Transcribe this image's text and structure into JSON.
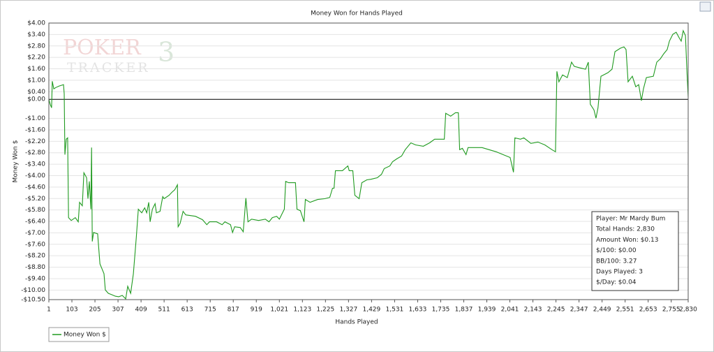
{
  "chart_data": {
    "type": "line",
    "title": "Money Won for Hands Played",
    "xlabel": "Hands Played",
    "ylabel": "Money Won $",
    "watermark": [
      "POKER",
      "TRACKER",
      "3"
    ],
    "annotations": [
      "Player: Mr Mardy Bum",
      "Total Hands: 2,830",
      "Amount Won: $0.13",
      "$/100: $0.00",
      "BB/100: 3.27",
      "Days Played: 3",
      "$/Day: $0.04"
    ],
    "grid": true,
    "legend": "bottom-left",
    "xlim": [
      1,
      2830
    ],
    "ylim": [
      -10.5,
      4
    ],
    "xticks": [
      1,
      103,
      205,
      307,
      409,
      511,
      613,
      715,
      817,
      919,
      {
        "value": 1021,
        "label": "1,021"
      },
      {
        "value": 1123,
        "label": "1,123"
      },
      {
        "value": 1225,
        "label": "1,225"
      },
      {
        "value": 1327,
        "label": "1,327"
      },
      {
        "value": 1429,
        "label": "1,429"
      },
      {
        "value": 1531,
        "label": "1,531"
      },
      {
        "value": 1633,
        "label": "1,633"
      },
      {
        "value": 1735,
        "label": "1,735"
      },
      {
        "value": 1837,
        "label": "1,837"
      },
      {
        "value": 1939,
        "label": "1,939"
      },
      {
        "value": 2041,
        "label": "2,041"
      },
      {
        "value": 2143,
        "label": "2,143"
      },
      {
        "value": 2245,
        "label": "2,245"
      },
      {
        "value": 2347,
        "label": "2,347"
      },
      {
        "value": 2449,
        "label": "2,449"
      },
      {
        "value": 2551,
        "label": "2,551"
      },
      {
        "value": 2653,
        "label": "2,653"
      },
      {
        "value": 2755,
        "label": "2,755"
      },
      {
        "value": 2830,
        "label": "2,830"
      }
    ],
    "yticks": [
      {
        "value": 4,
        "label": "$4.00"
      },
      {
        "value": 3.4,
        "label": "$3.40"
      },
      {
        "value": 2.8,
        "label": "$2.80"
      },
      {
        "value": 2.2,
        "label": "$2.20"
      },
      {
        "value": 1.6,
        "label": "$1.60"
      },
      {
        "value": 1,
        "label": "$1.00"
      },
      {
        "value": 0.4,
        "label": "$0.40"
      },
      {
        "value": 0,
        "label": "$0.00"
      },
      {
        "value": -1,
        "label": "-$1.00"
      },
      {
        "value": -1.6,
        "label": "-$1.60"
      },
      {
        "value": -2.2,
        "label": "-$2.20"
      },
      {
        "value": -2.8,
        "label": "-$2.80"
      },
      {
        "value": -3.4,
        "label": "-$3.40"
      },
      {
        "value": -4,
        "label": "-$4.00"
      },
      {
        "value": -4.6,
        "label": "-$4.60"
      },
      {
        "value": -5.2,
        "label": "-$5.20"
      },
      {
        "value": -5.8,
        "label": "-$5.80"
      },
      {
        "value": -6.4,
        "label": "-$6.40"
      },
      {
        "value": -7,
        "label": "-$7.00"
      },
      {
        "value": -7.6,
        "label": "-$7.60"
      },
      {
        "value": -8.2,
        "label": "-$8.20"
      },
      {
        "value": -8.8,
        "label": "-$8.80"
      },
      {
        "value": -9.4,
        "label": "-$9.40"
      },
      {
        "value": -10,
        "label": "-$10.00"
      },
      {
        "value": -10.5,
        "label": "-$10.50"
      }
    ],
    "x": [
      1,
      7,
      13,
      16,
      23,
      32,
      47,
      66,
      69,
      72,
      78,
      84,
      88,
      100,
      118,
      131,
      137,
      149,
      156,
      168,
      174,
      180,
      187,
      190,
      193,
      199,
      217,
      227,
      236,
      245,
      251,
      264,
      279,
      295,
      310,
      326,
      341,
      350,
      363,
      375,
      388,
      397,
      412,
      425,
      434,
      443,
      449,
      459,
      471,
      477,
      493,
      505,
      511,
      533,
      545,
      558,
      570,
      573,
      582,
      595,
      607,
      650,
      681,
      700,
      712,
      743,
      768,
      780,
      805,
      814,
      823,
      848,
      861,
      873,
      882,
      898,
      929,
      959,
      975,
      990,
      1009,
      1021,
      1043,
      1049,
      1062,
      1092,
      1099,
      1114,
      1130,
      1136,
      1157,
      1191,
      1222,
      1244,
      1256,
      1263,
      1269,
      1300,
      1324,
      1330,
      1346,
      1355,
      1374,
      1386,
      1408,
      1426,
      1454,
      1473,
      1485,
      1510,
      1522,
      1541,
      1562,
      1578,
      1603,
      1624,
      1658,
      1686,
      1708,
      1732,
      1751,
      1757,
      1779,
      1800,
      1813,
      1819,
      1831,
      1847,
      1856,
      1887,
      1918,
      1949,
      1980,
      2011,
      2042,
      2057,
      2063,
      2088,
      2103,
      2134,
      2165,
      2196,
      2227,
      2243,
      2249,
      2258,
      2274,
      2295,
      2314,
      2326,
      2351,
      2376,
      2388,
      2397,
      2413,
      2422,
      2431,
      2444,
      2475,
      2493,
      2506,
      2530,
      2546,
      2555,
      2564,
      2583,
      2598,
      2611,
      2623,
      2632,
      2645,
      2676,
      2691,
      2707,
      2722,
      2737,
      2747,
      2762,
      2777,
      2790,
      2799,
      2808,
      2818,
      2824,
      2830
    ],
    "series": [
      {
        "name": "Money Won $",
        "color": "#1f9a1f",
        "values": [
          0,
          -0.26,
          -0.44,
          0.95,
          0.55,
          0.62,
          0.7,
          0.77,
          0.29,
          -2.9,
          -2.09,
          -2.02,
          -6.2,
          -6.35,
          -6.2,
          -6.42,
          -5.4,
          -5.58,
          -3.85,
          -4.11,
          -5.21,
          -4.3,
          -5.76,
          -2.53,
          -7.45,
          -6.98,
          -7.05,
          -8.63,
          -8.88,
          -9.14,
          -9.99,
          -10.17,
          -10.24,
          -10.32,
          -10.35,
          -10.28,
          -10.46,
          -9.8,
          -10.17,
          -9.14,
          -7.23,
          -5.76,
          -5.95,
          -5.69,
          -5.95,
          -5.4,
          -6.42,
          -5.76,
          -5.47,
          -5.95,
          -5.87,
          -5.1,
          -5.21,
          -5.03,
          -4.88,
          -4.74,
          -4.48,
          -6.68,
          -6.5,
          -5.87,
          -6.06,
          -6.13,
          -6.31,
          -6.57,
          -6.42,
          -6.42,
          -6.57,
          -6.42,
          -6.57,
          -6.98,
          -6.68,
          -6.72,
          -6.94,
          -5.18,
          -6.42,
          -6.28,
          -6.35,
          -6.28,
          -6.42,
          -6.2,
          -6.13,
          -6.28,
          -5.76,
          -4.3,
          -4.37,
          -4.37,
          -5.76,
          -5.84,
          -6.42,
          -5.25,
          -5.4,
          -5.25,
          -5.21,
          -5.14,
          -4.66,
          -4.66,
          -3.74,
          -3.74,
          -3.49,
          -3.74,
          -3.74,
          -5.03,
          -5.21,
          -4.37,
          -4.22,
          -4.19,
          -4.11,
          -3.93,
          -3.63,
          -3.49,
          -3.27,
          -3.12,
          -2.97,
          -2.64,
          -2.28,
          -2.39,
          -2.46,
          -2.28,
          -2.09,
          -2.09,
          -2.09,
          -0.73,
          -0.88,
          -0.7,
          -0.7,
          -2.64,
          -2.57,
          -2.9,
          -2.53,
          -2.53,
          -2.53,
          -2.64,
          -2.75,
          -2.9,
          -3.05,
          -3.82,
          -2.02,
          -2.09,
          -2.02,
          -2.31,
          -2.24,
          -2.39,
          -2.64,
          -2.75,
          1.47,
          0.92,
          1.28,
          1.14,
          1.95,
          1.73,
          1.65,
          1.58,
          1.95,
          -0.26,
          -0.55,
          -0.99,
          -0.44,
          1.21,
          1.4,
          1.58,
          2.5,
          2.68,
          2.75,
          2.61,
          0.92,
          1.21,
          0.66,
          0.77,
          -0.07,
          0.55,
          1.14,
          1.21,
          1.95,
          2.13,
          2.39,
          2.61,
          3.05,
          3.41,
          3.52,
          3.23,
          3.05,
          3.6,
          3.34,
          1.58,
          0.13
        ]
      }
    ]
  }
}
